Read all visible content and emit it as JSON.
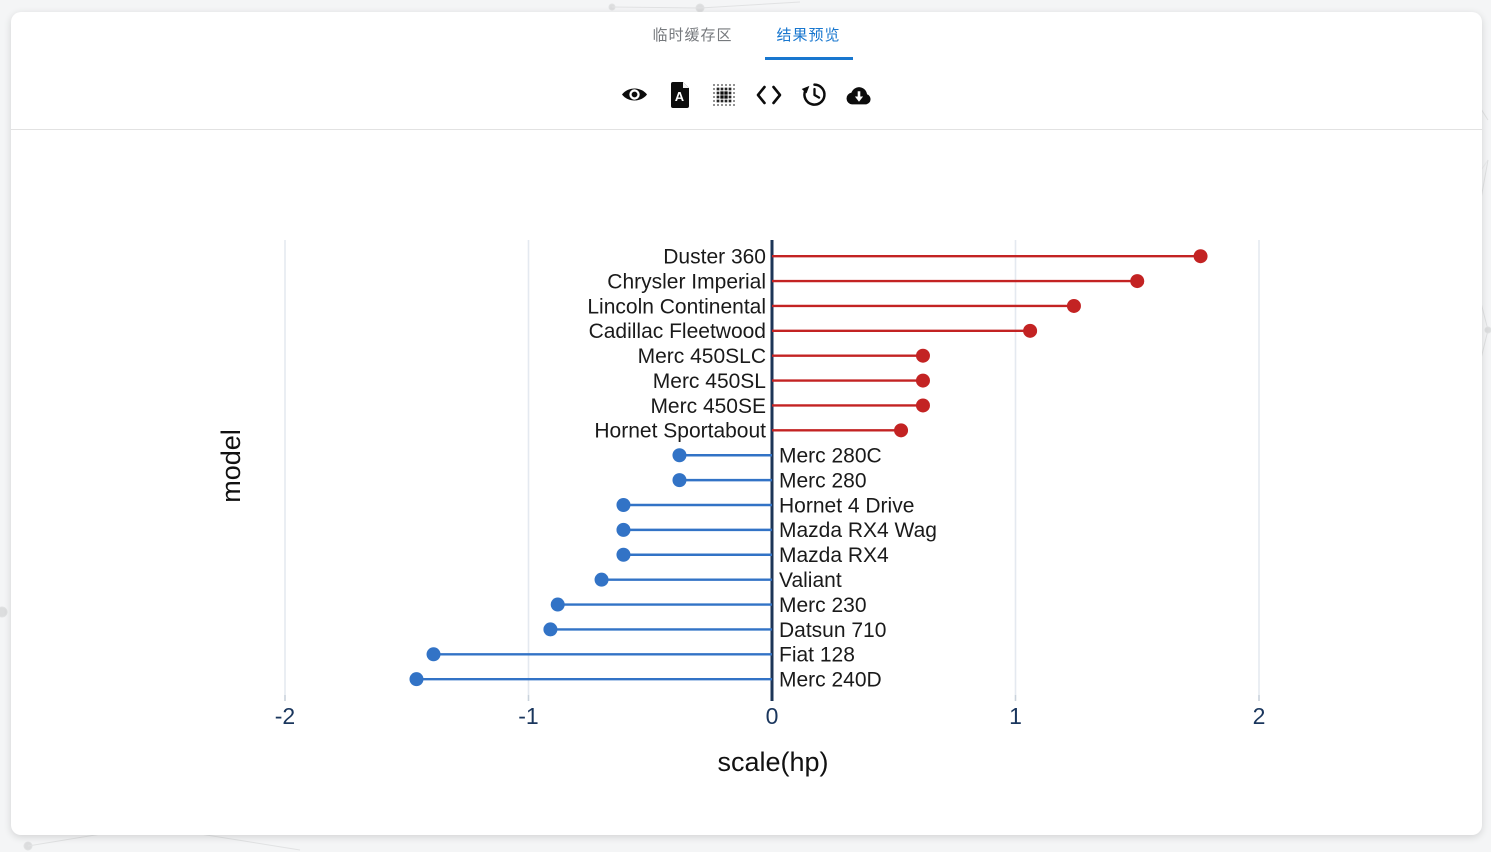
{
  "tabs": [
    {
      "label": "临时缓存区",
      "active": false
    },
    {
      "label": "结果预览",
      "active": true
    }
  ],
  "toolbar": {
    "icons": [
      "eye-icon",
      "pdf-file-icon",
      "dot-matrix-icon",
      "code-icon",
      "history-icon",
      "cloud-download-icon"
    ]
  },
  "colors": {
    "tab_active": "#1877cf",
    "tab_inactive": "#76797d",
    "positive": "#c32323",
    "negative": "#3273c6",
    "zero_line": "#1d3557",
    "tick_label": "#1a365d",
    "gridline": "#e4e9f0"
  },
  "chart_data": {
    "type": "lollipop",
    "title": "",
    "xlabel": "scale(hp)",
    "ylabel": "model",
    "x_ticks": [
      -2,
      -1,
      0,
      1,
      2
    ],
    "xlim": [
      -2.1,
      2.1
    ],
    "grid": "vertical-only",
    "legend": "none",
    "colors": {
      "positive": "#c32323",
      "negative": "#3273c6"
    },
    "points": [
      {
        "model": "Duster 360",
        "value": 1.76
      },
      {
        "model": "Chrysler Imperial",
        "value": 1.5
      },
      {
        "model": "Lincoln Continental",
        "value": 1.24
      },
      {
        "model": "Cadillac Fleetwood",
        "value": 1.06
      },
      {
        "model": "Merc 450SLC",
        "value": 0.62
      },
      {
        "model": "Merc 450SL",
        "value": 0.62
      },
      {
        "model": "Merc 450SE",
        "value": 0.62
      },
      {
        "model": "Hornet Sportabout",
        "value": 0.53
      },
      {
        "model": "Merc 280C",
        "value": -0.38
      },
      {
        "model": "Merc 280",
        "value": -0.38
      },
      {
        "model": "Hornet 4 Drive",
        "value": -0.61
      },
      {
        "model": "Mazda RX4 Wag",
        "value": -0.61
      },
      {
        "model": "Mazda RX4",
        "value": -0.61
      },
      {
        "model": "Valiant",
        "value": -0.7
      },
      {
        "model": "Merc 230",
        "value": -0.88
      },
      {
        "model": "Datsun 710",
        "value": -0.91
      },
      {
        "model": "Fiat 128",
        "value": -1.39
      },
      {
        "model": "Merc 240D",
        "value": -1.46
      }
    ]
  }
}
